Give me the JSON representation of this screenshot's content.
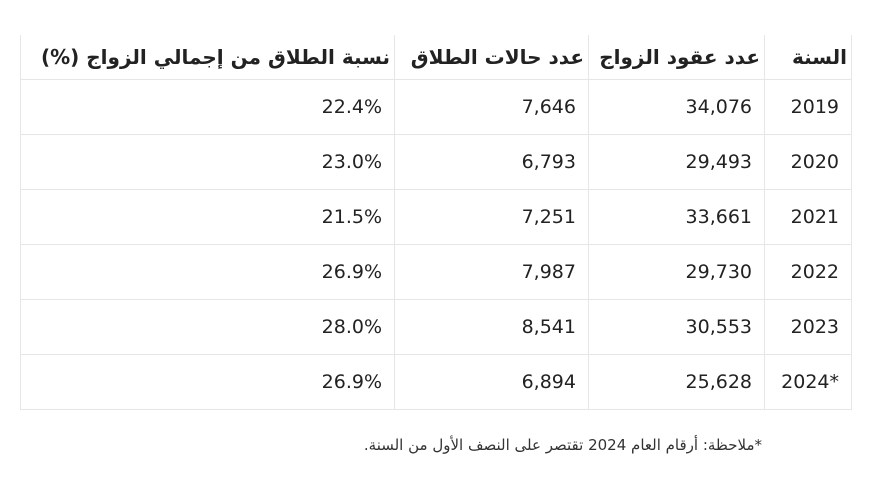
{
  "table": {
    "headers": [
      "السنة",
      "عدد عقود الزواج",
      "عدد حالات الطلاق",
      "نسبة الطلاق من إجمالي الزواج (%)"
    ],
    "rows": [
      [
        "2019",
        "34,076",
        "7,646",
        "22.4%"
      ],
      [
        "2020",
        "29,493",
        "6,793",
        "23.0%"
      ],
      [
        "2021",
        "33,661",
        "7,251",
        "21.5%"
      ],
      [
        "2022",
        "29,730",
        "7,987",
        "26.9%"
      ],
      [
        "2023",
        "30,553",
        "8,541",
        "28.0%"
      ],
      [
        "2024*",
        "25,628",
        "6,894",
        "26.9%"
      ]
    ]
  },
  "note": "*ملاحظة: أرقام العام 2024 تقتصر على النصف الأول من السنة."
}
